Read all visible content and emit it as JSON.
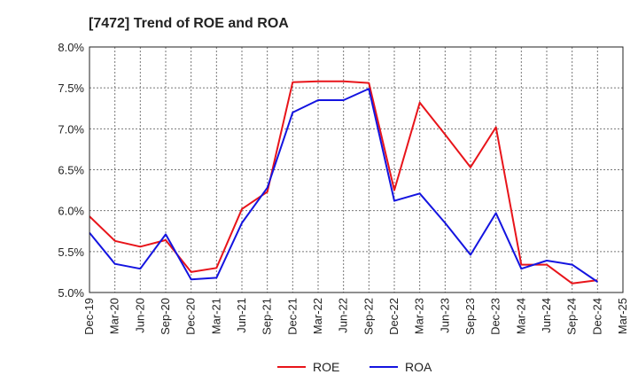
{
  "chart_data": {
    "type": "line",
    "title": "[7472]  Trend of ROE and ROA",
    "xlabel": "",
    "ylabel": "",
    "categories": [
      "Dec-19",
      "Mar-20",
      "Jun-20",
      "Sep-20",
      "Dec-20",
      "Mar-21",
      "Jun-21",
      "Sep-21",
      "Dec-21",
      "Mar-22",
      "Jun-22",
      "Sep-22",
      "Dec-22",
      "Mar-23",
      "Jun-23",
      "Sep-23",
      "Dec-23",
      "Mar-24",
      "Jun-24",
      "Sep-24",
      "Dec-24",
      "Mar-25"
    ],
    "ylim": [
      5.0,
      8.0
    ],
    "yticks": [
      "5.0%",
      "5.5%",
      "6.0%",
      "6.5%",
      "7.0%",
      "7.5%",
      "8.0%"
    ],
    "yticks_values": [
      5.0,
      5.5,
      6.0,
      6.5,
      7.0,
      7.5,
      8.0
    ],
    "grid": true,
    "legend_position": "bottom-center",
    "series": [
      {
        "name": "ROE",
        "color": "#e8141a",
        "values": [
          5.93,
          5.63,
          5.56,
          5.64,
          5.25,
          5.3,
          6.02,
          6.23,
          7.57,
          7.58,
          7.58,
          7.56,
          6.25,
          7.32,
          6.93,
          6.53,
          7.02,
          5.34,
          5.34,
          5.11,
          5.15,
          null
        ]
      },
      {
        "name": "ROA",
        "color": "#1414e0",
        "values": [
          5.73,
          5.35,
          5.29,
          5.71,
          5.16,
          5.18,
          5.85,
          6.28,
          7.2,
          7.35,
          7.35,
          7.49,
          6.12,
          6.21,
          5.85,
          5.46,
          5.97,
          5.29,
          5.39,
          5.34,
          5.13,
          null
        ]
      }
    ]
  }
}
